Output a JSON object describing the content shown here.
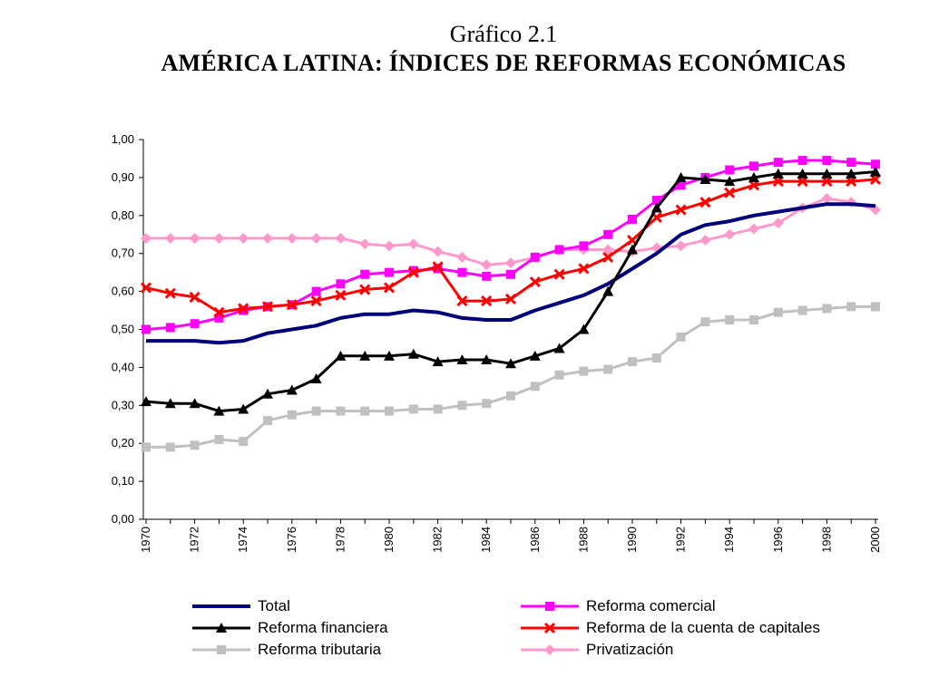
{
  "header": {
    "supertitle": "Gráfico 2.1",
    "title": "AMÉRICA LATINA: ÍNDICES DE REFORMAS ECONÓMICAS"
  },
  "chart_data": {
    "type": "line",
    "x": [
      1970,
      1971,
      1972,
      1973,
      1974,
      1975,
      1976,
      1977,
      1978,
      1979,
      1980,
      1981,
      1982,
      1983,
      1984,
      1985,
      1986,
      1987,
      1988,
      1989,
      1990,
      1991,
      1992,
      1993,
      1994,
      1995,
      1996,
      1997,
      1998,
      1999,
      2000
    ],
    "x_tick_labels": [
      "1970",
      "1972",
      "1974",
      "1976",
      "1978",
      "1980",
      "1982",
      "1984",
      "1986",
      "1988",
      "1990",
      "1992",
      "1994",
      "1996",
      "1998",
      "2000"
    ],
    "y_tick_labels": [
      "0,00",
      "0,10",
      "0,20",
      "0,30",
      "0,40",
      "0,50",
      "0,60",
      "0,70",
      "0,80",
      "0,90",
      "1,00"
    ],
    "ylim": [
      0,
      1
    ],
    "grid": false,
    "legend_position": "bottom",
    "series": [
      {
        "name": "Total",
        "color": "#00007a",
        "marker": "none",
        "values": [
          0.47,
          0.47,
          0.47,
          0.465,
          0.47,
          0.49,
          0.5,
          0.51,
          0.53,
          0.54,
          0.54,
          0.55,
          0.545,
          0.53,
          0.525,
          0.525,
          0.55,
          0.57,
          0.59,
          0.62,
          0.66,
          0.7,
          0.75,
          0.775,
          0.785,
          0.8,
          0.81,
          0.82,
          0.83,
          0.83,
          0.825
        ]
      },
      {
        "name": "Reforma comercial",
        "color": "#ff00ff",
        "marker": "square",
        "values": [
          0.5,
          0.505,
          0.515,
          0.53,
          0.55,
          0.56,
          0.565,
          0.6,
          0.62,
          0.645,
          0.65,
          0.655,
          0.66,
          0.65,
          0.64,
          0.645,
          0.69,
          0.71,
          0.72,
          0.75,
          0.79,
          0.84,
          0.88,
          0.9,
          0.92,
          0.93,
          0.94,
          0.945,
          0.945,
          0.94,
          0.935
        ]
      },
      {
        "name": "Reforma financiera",
        "color": "#000000",
        "marker": "triangle",
        "values": [
          0.31,
          0.305,
          0.305,
          0.285,
          0.29,
          0.33,
          0.34,
          0.37,
          0.43,
          0.43,
          0.43,
          0.435,
          0.415,
          0.42,
          0.42,
          0.41,
          0.43,
          0.45,
          0.5,
          0.6,
          0.71,
          0.82,
          0.9,
          0.895,
          0.89,
          0.9,
          0.91,
          0.91,
          0.91,
          0.91,
          0.915
        ]
      },
      {
        "name": "Reforma de la cuenta de capitales",
        "color": "#ff0000",
        "marker": "x",
        "values": [
          0.61,
          0.595,
          0.585,
          0.545,
          0.555,
          0.56,
          0.565,
          0.575,
          0.59,
          0.605,
          0.61,
          0.65,
          0.665,
          0.575,
          0.575,
          0.58,
          0.625,
          0.645,
          0.66,
          0.69,
          0.735,
          0.795,
          0.815,
          0.835,
          0.86,
          0.88,
          0.89,
          0.89,
          0.89,
          0.89,
          0.895
        ]
      },
      {
        "name": "Reforma tributaria",
        "color": "#c0c0c0",
        "marker": "square",
        "values": [
          0.19,
          0.19,
          0.195,
          0.21,
          0.205,
          0.26,
          0.275,
          0.285,
          0.285,
          0.285,
          0.285,
          0.29,
          0.29,
          0.3,
          0.305,
          0.325,
          0.35,
          0.38,
          0.39,
          0.395,
          0.415,
          0.425,
          0.48,
          0.52,
          0.525,
          0.525,
          0.545,
          0.55,
          0.555,
          0.56,
          0.56
        ]
      },
      {
        "name": "Privatización",
        "color": "#ff99cc",
        "marker": "diamond",
        "values": [
          0.74,
          0.74,
          0.74,
          0.74,
          0.74,
          0.74,
          0.74,
          0.74,
          0.74,
          0.725,
          0.72,
          0.725,
          0.705,
          0.69,
          0.67,
          0.675,
          0.69,
          0.71,
          0.71,
          0.71,
          0.705,
          0.715,
          0.72,
          0.735,
          0.75,
          0.765,
          0.78,
          0.82,
          0.845,
          0.835,
          0.815
        ]
      }
    ]
  }
}
